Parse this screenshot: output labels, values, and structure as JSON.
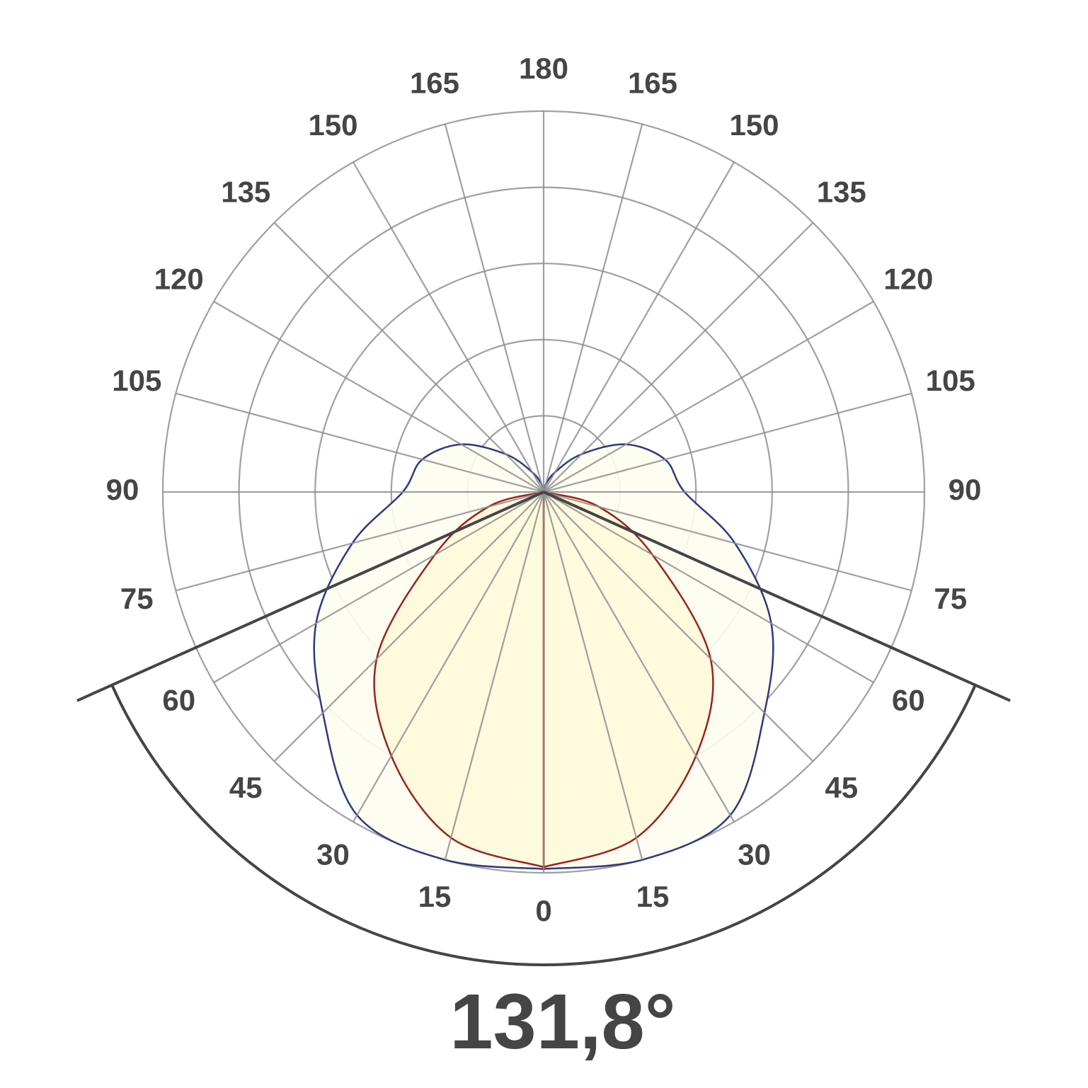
{
  "chart_data": {
    "type": "polar",
    "angle_ticks": [
      0,
      15,
      30,
      45,
      60,
      75,
      90,
      105,
      120,
      135,
      150,
      165,
      180
    ],
    "rlim": [
      0,
      100
    ],
    "rticks": [
      20,
      40,
      60,
      80,
      100
    ],
    "grid": true,
    "series": [
      {
        "color": "#2b3a80",
        "values": [
          99,
          100,
          98,
          82,
          69,
          52,
          37,
          33,
          25,
          14,
          6,
          2,
          0
        ]
      },
      {
        "color": "#9a2222",
        "values": [
          98.5,
          94,
          80,
          62,
          33,
          15,
          0,
          0,
          0,
          0,
          0,
          0,
          0
        ]
      }
    ],
    "beam_angle": 131.8,
    "beam_angle_label": "131,8°"
  }
}
